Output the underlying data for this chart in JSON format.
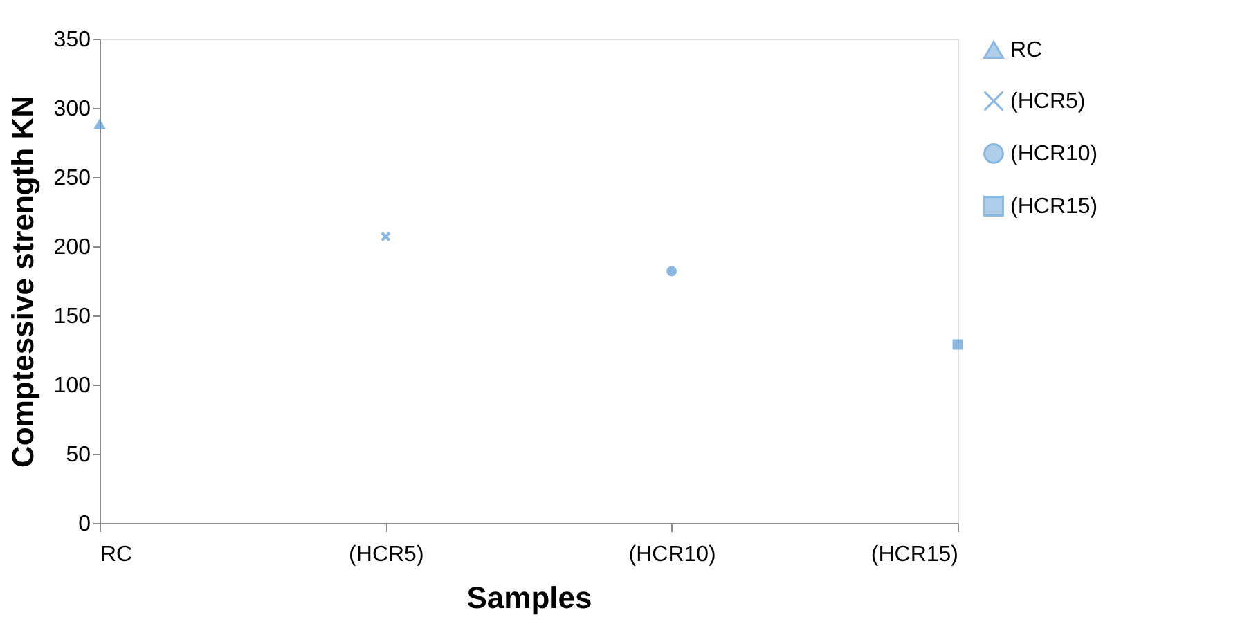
{
  "chart_data": {
    "type": "scatter",
    "xlabel": "Samples",
    "ylabel": "Comptessive strength KN",
    "categories": [
      "RC",
      "(HCR5)",
      "(HCR10)",
      "(HCR15)"
    ],
    "ylim": [
      0,
      350
    ],
    "yticks": [
      0,
      50,
      100,
      150,
      200,
      250,
      300,
      350
    ],
    "grid": false,
    "legend": "right",
    "series": [
      {
        "name": "RC",
        "color": "#5b9bd5",
        "marker": "triangle",
        "values": [
          288,
          null,
          null,
          null
        ]
      },
      {
        "name": "(HCR5)",
        "color": "#5b9bd5",
        "marker": "cross",
        "values": [
          null,
          207,
          null,
          null
        ]
      },
      {
        "name": "(HCR10)",
        "color": "#5b9bd5",
        "marker": "circle",
        "values": [
          null,
          null,
          182,
          null
        ]
      },
      {
        "name": "(HCR15)",
        "color": "#5b9bd5",
        "marker": "square",
        "values": [
          null,
          null,
          null,
          129
        ]
      }
    ]
  }
}
